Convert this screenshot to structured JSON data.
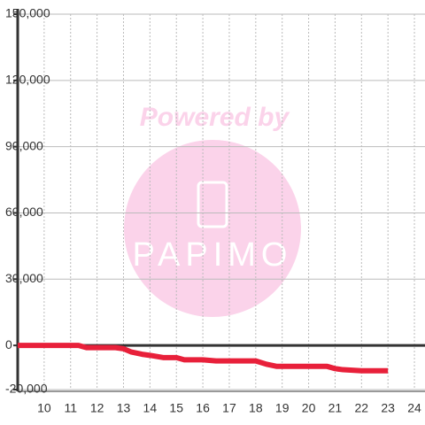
{
  "chart_data": {
    "type": "line",
    "watermark": {
      "line1": "Powered by",
      "line2": "PAPIMO"
    },
    "x": [
      9,
      11.3,
      11.6,
      12.7,
      13.0,
      13.3,
      13.7,
      14.0,
      14.5,
      15.0,
      15.3,
      16.0,
      16.5,
      17.0,
      18.0,
      18.4,
      18.8,
      19.5,
      20.0,
      20.7,
      21.0,
      21.3,
      22.0,
      23.0
    ],
    "series": [
      {
        "color": "#e8203a",
        "values": [
          0,
          0,
          -1000,
          -1000,
          -1500,
          -3000,
          -4000,
          -4500,
          -5500,
          -5500,
          -6500,
          -6500,
          -7000,
          -7000,
          -7000,
          -8500,
          -9500,
          -9500,
          -9500,
          -9500,
          -10500,
          -11000,
          -11500,
          -11500
        ]
      }
    ],
    "xlim": [
      9,
      24.4
    ],
    "xticks": [
      10,
      11,
      12,
      13,
      14,
      15,
      16,
      17,
      18,
      19,
      20,
      21,
      22,
      23,
      24
    ],
    "ylim": [
      -20000,
      150000
    ],
    "yticks": [
      {
        "value": -20000,
        "label": "-20,000"
      },
      0,
      {
        "value": 30000,
        "label": "30,000"
      },
      {
        "value": 60000,
        "label": "60,000"
      },
      {
        "value": 90000,
        "label": "90,000"
      },
      {
        "value": 120000,
        "label": "120,000"
      },
      {
        "value": 150000,
        "label": "150,000"
      }
    ],
    "grid": true
  }
}
